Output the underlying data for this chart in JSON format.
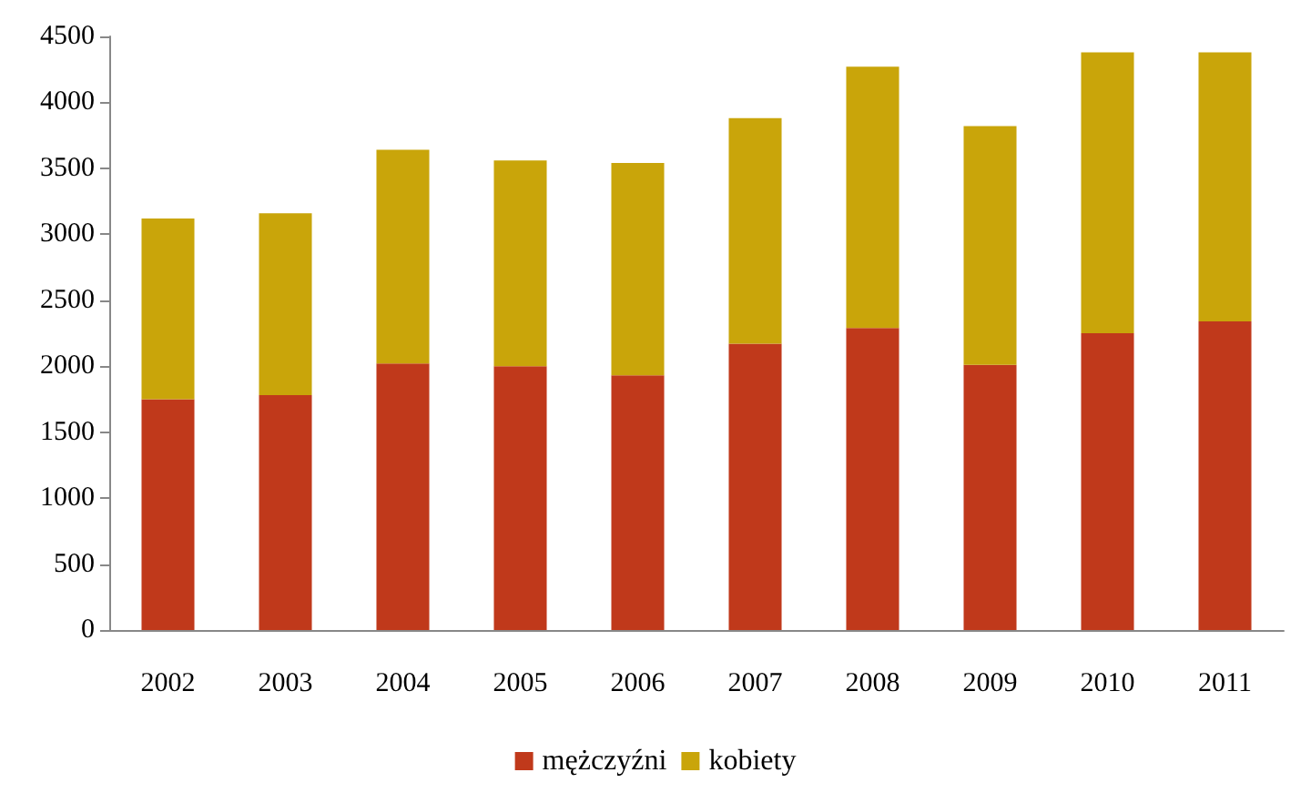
{
  "chart_data": {
    "type": "bar",
    "stacked": true,
    "categories": [
      "2002",
      "2003",
      "2004",
      "2005",
      "2006",
      "2007",
      "2008",
      "2009",
      "2010",
      "2011"
    ],
    "series": [
      {
        "name": "mężczyźni",
        "color": "#c0391b",
        "values": [
          1750,
          1780,
          2020,
          2000,
          1930,
          2170,
          2290,
          2010,
          2250,
          2340
        ]
      },
      {
        "name": "kobiety",
        "color": "#c9a50a",
        "values": [
          1370,
          1380,
          1620,
          1560,
          1610,
          1710,
          1980,
          1810,
          2130,
          2040
        ]
      }
    ],
    "ylim": [
      0,
      4500
    ],
    "yticks": [
      0,
      500,
      1000,
      1500,
      2000,
      2500,
      3000,
      3500,
      4000,
      4500
    ],
    "grid": false,
    "legend": "bottom"
  }
}
